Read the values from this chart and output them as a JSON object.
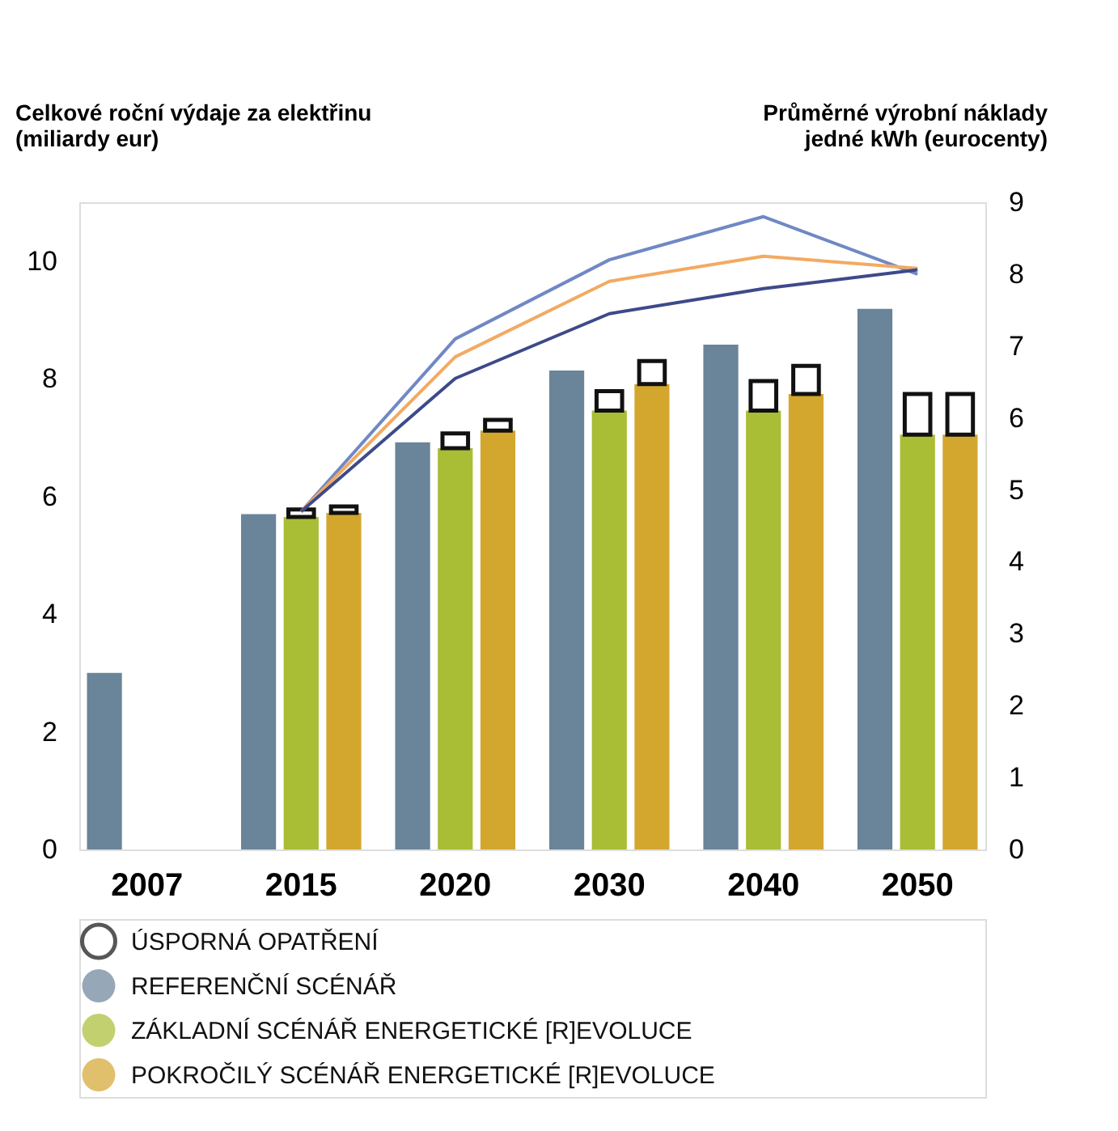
{
  "chart_data": {
    "type": "bar",
    "ylabel": "Celkové roční výdaje za elektřinu\n(miliardy eur)",
    "y2label": "Průměrné výrobní náklady\njedné kWh (eurocenty)",
    "categories": [
      "2007",
      "2015",
      "2020",
      "2030",
      "2040",
      "2050"
    ],
    "series": [
      {
        "name": "REFERENČNÍ SCÉNÁŘ",
        "color": "#6a8499",
        "values": [
          3.0,
          5.7,
          6.92,
          8.14,
          8.58,
          9.19
        ]
      },
      {
        "name": "ZÁKLADNÍ SCÉNÁŘ ENERGETICKÉ [R]EVOLUCE",
        "color": "#a9bd35",
        "values": [
          null,
          5.65,
          6.82,
          7.46,
          7.46,
          7.05
        ]
      },
      {
        "name": "ÚSPORNÁ OPATŘENÍ",
        "color": "#ffffff",
        "base": [
          null,
          5.65,
          6.82,
          7.46,
          7.46,
          7.05
        ],
        "values": [
          null,
          0.13,
          0.25,
          0.33,
          0.5,
          0.69
        ]
      },
      {
        "name": "POKROČILÝ SCÉNÁŘ ENERGETICKÉ [R]EVOLUCE",
        "color": "#d3a62e",
        "values": [
          null,
          5.72,
          7.12,
          7.91,
          7.74,
          7.05
        ]
      },
      {
        "color": "#ffffff",
        "base": [
          null,
          5.72,
          7.12,
          7.91,
          7.74,
          7.05
        ],
        "values": [
          null,
          0.11,
          0.18,
          0.39,
          0.48,
          0.69
        ]
      },
      {
        "type": "line",
        "axis": "y2",
        "color": "#7088c4",
        "values": [
          null,
          4.7,
          7.1,
          8.2,
          8.8,
          8.0
        ]
      },
      {
        "type": "line",
        "axis": "y2",
        "color": "#f2aa62",
        "values": [
          null,
          4.7,
          6.85,
          7.9,
          8.25,
          8.08
        ]
      },
      {
        "type": "line",
        "axis": "y2",
        "color": "#3d4a8a",
        "values": [
          null,
          4.7,
          6.55,
          7.45,
          7.8,
          8.06
        ]
      }
    ],
    "ylim": [
      0,
      11
    ],
    "yticks": [
      0,
      2,
      4,
      6,
      8,
      10
    ],
    "y2lim": [
      0,
      9
    ],
    "y2ticks": [
      0,
      1,
      2,
      3,
      4,
      5,
      6,
      7,
      8,
      9
    ],
    "legend": "bottom",
    "grid": false
  }
}
